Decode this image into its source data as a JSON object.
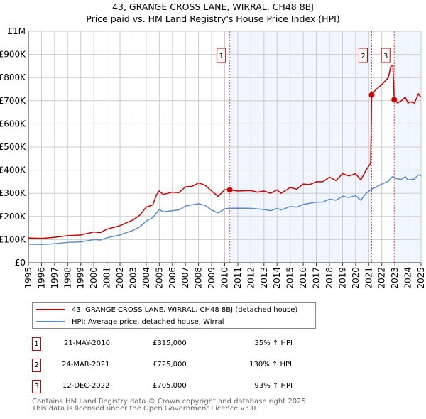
{
  "title_line1": "43, GRANGE CROSS LANE, WIRRAL, CH48 8BJ",
  "title_line2": "Price paid vs. HM Land Registry's House Price Index (HPI)",
  "chart_data": {
    "type": "line",
    "ylim": [
      0,
      1000000
    ],
    "xlim": [
      1995,
      2025
    ],
    "y_ticks": [
      {
        "v": 0,
        "label": "£0"
      },
      {
        "v": 100000,
        "label": "£100K"
      },
      {
        "v": 200000,
        "label": "£200K"
      },
      {
        "v": 300000,
        "label": "£300K"
      },
      {
        "v": 400000,
        "label": "£400K"
      },
      {
        "v": 500000,
        "label": "£500K"
      },
      {
        "v": 600000,
        "label": "£600K"
      },
      {
        "v": 700000,
        "label": "£700K"
      },
      {
        "v": 800000,
        "label": "£800K"
      },
      {
        "v": 900000,
        "label": "£900K"
      },
      {
        "v": 1000000,
        "label": "£1M"
      }
    ],
    "x_ticks": [
      "1995",
      "1996",
      "1997",
      "1998",
      "1999",
      "2000",
      "2001",
      "2002",
      "2003",
      "2004",
      "2005",
      "2006",
      "2007",
      "2008",
      "2009",
      "2010",
      "2011",
      "2012",
      "2013",
      "2014",
      "2015",
      "2016",
      "2017",
      "2018",
      "2019",
      "2020",
      "2021",
      "2022",
      "2023",
      "2024",
      "2025"
    ],
    "grid": true,
    "shaded_ranges": [
      [
        2010.39,
        2021.23
      ],
      [
        2022.95,
        2025
      ]
    ],
    "series": [
      {
        "name": "43, GRANGE CROSS LANE, WIRRAL, CH48 8BJ (detached house)",
        "color": "#cc0000",
        "points": [
          [
            1995,
            107000
          ],
          [
            1996,
            105000
          ],
          [
            1997,
            110000
          ],
          [
            1998,
            117000
          ],
          [
            1999,
            120000
          ],
          [
            2000,
            133000
          ],
          [
            2000.5,
            130000
          ],
          [
            2001,
            145000
          ],
          [
            2002,
            160000
          ],
          [
            2003,
            185000
          ],
          [
            2003.5,
            205000
          ],
          [
            2004,
            240000
          ],
          [
            2004.5,
            250000
          ],
          [
            2004.8,
            295000
          ],
          [
            2005,
            310000
          ],
          [
            2005.3,
            295000
          ],
          [
            2006,
            305000
          ],
          [
            2006.5,
            303000
          ],
          [
            2007,
            328000
          ],
          [
            2007.5,
            330000
          ],
          [
            2008,
            345000
          ],
          [
            2008.5,
            335000
          ],
          [
            2009,
            310000
          ],
          [
            2009.5,
            287000
          ],
          [
            2010,
            315000
          ],
          [
            2010.39,
            315000
          ],
          [
            2011,
            310000
          ],
          [
            2012,
            312000
          ],
          [
            2012.5,
            305000
          ],
          [
            2013,
            310000
          ],
          [
            2013.5,
            300000
          ],
          [
            2014,
            315000
          ],
          [
            2014.3,
            300000
          ],
          [
            2015,
            325000
          ],
          [
            2015.5,
            318000
          ],
          [
            2016,
            340000
          ],
          [
            2016.5,
            338000
          ],
          [
            2017,
            350000
          ],
          [
            2017.5,
            350000
          ],
          [
            2018,
            370000
          ],
          [
            2018.5,
            355000
          ],
          [
            2019,
            385000
          ],
          [
            2019.5,
            375000
          ],
          [
            2020,
            385000
          ],
          [
            2020.4,
            358000
          ],
          [
            2020.8,
            400000
          ],
          [
            2021.15,
            430000
          ],
          [
            2021.23,
            725000
          ],
          [
            2021.5,
            745000
          ],
          [
            2022,
            770000
          ],
          [
            2022.5,
            800000
          ],
          [
            2022.7,
            850000
          ],
          [
            2022.85,
            850000
          ],
          [
            2022.95,
            705000
          ],
          [
            2023.2,
            690000
          ],
          [
            2023.5,
            700000
          ],
          [
            2023.8,
            715000
          ],
          [
            2024,
            690000
          ],
          [
            2024.2,
            695000
          ],
          [
            2024.5,
            690000
          ],
          [
            2024.8,
            730000
          ],
          [
            2025,
            715000
          ]
        ]
      },
      {
        "name": "HPI: Average price, detached house, Wirral",
        "color": "#5b8bd0",
        "points": [
          [
            1995,
            80000
          ],
          [
            1996,
            79000
          ],
          [
            1997,
            82000
          ],
          [
            1998,
            88000
          ],
          [
            1999,
            90000
          ],
          [
            2000,
            100000
          ],
          [
            2000.5,
            98000
          ],
          [
            2001,
            108000
          ],
          [
            2002,
            120000
          ],
          [
            2003,
            140000
          ],
          [
            2003.5,
            155000
          ],
          [
            2004,
            180000
          ],
          [
            2004.5,
            195000
          ],
          [
            2005,
            230000
          ],
          [
            2005.3,
            220000
          ],
          [
            2006,
            225000
          ],
          [
            2006.5,
            228000
          ],
          [
            2007,
            245000
          ],
          [
            2008,
            255000
          ],
          [
            2008.5,
            248000
          ],
          [
            2009,
            228000
          ],
          [
            2009.5,
            215000
          ],
          [
            2010,
            233000
          ],
          [
            2010.39,
            235000
          ],
          [
            2011,
            236000
          ],
          [
            2012,
            235000
          ],
          [
            2013,
            230000
          ],
          [
            2013.5,
            225000
          ],
          [
            2014,
            235000
          ],
          [
            2014.3,
            228000
          ],
          [
            2015,
            243000
          ],
          [
            2015.5,
            240000
          ],
          [
            2016,
            252000
          ],
          [
            2017,
            262000
          ],
          [
            2017.5,
            262000
          ],
          [
            2018,
            275000
          ],
          [
            2018.5,
            270000
          ],
          [
            2019,
            288000
          ],
          [
            2019.5,
            282000
          ],
          [
            2020,
            290000
          ],
          [
            2020.4,
            270000
          ],
          [
            2020.8,
            300000
          ],
          [
            2021.23,
            318000
          ],
          [
            2021.5,
            325000
          ],
          [
            2022,
            340000
          ],
          [
            2022.5,
            352000
          ],
          [
            2022.8,
            372000
          ],
          [
            2023,
            365000
          ],
          [
            2023.5,
            360000
          ],
          [
            2023.8,
            372000
          ],
          [
            2024,
            358000
          ],
          [
            2024.5,
            362000
          ],
          [
            2024.8,
            380000
          ],
          [
            2025,
            375000
          ]
        ]
      }
    ],
    "sales": [
      {
        "label": "1",
        "x": 2010.39,
        "y": 315000
      },
      {
        "label": "2",
        "x": 2021.23,
        "y": 725000
      },
      {
        "label": "3",
        "x": 2022.95,
        "y": 705000
      }
    ]
  },
  "legend": {
    "property": "43, GRANGE CROSS LANE, WIRRAL, CH48 8BJ (detached house)",
    "hpi": "HPI: Average price, detached house, Wirral"
  },
  "transactions": [
    {
      "num": "1",
      "date": "21-MAY-2010",
      "price": "£315,000",
      "hpi": "35% ↑ HPI"
    },
    {
      "num": "2",
      "date": "24-MAR-2021",
      "price": "£725,000",
      "hpi": "130% ↑ HPI"
    },
    {
      "num": "3",
      "date": "12-DEC-2022",
      "price": "£705,000",
      "hpi": "93% ↑ HPI"
    }
  ],
  "footer": {
    "line1": "Contains HM Land Registry data © Crown copyright and database right 2025.",
    "line2": "This data is licensed under the Open Government Licence v3.0."
  }
}
